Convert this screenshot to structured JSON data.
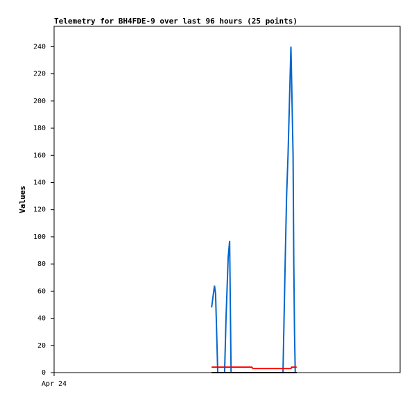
{
  "chart_data": {
    "type": "line",
    "title": "Telemetry for BH4FDE-9 over last 96 hours (25 points)",
    "y_label": "Values",
    "x": [
      43.7,
      44.5,
      44.8,
      45.2,
      45.4,
      47.3,
      47.7,
      48.3,
      48.7,
      49.1,
      54.8,
      55.2,
      63.5,
      64.1,
      64.5,
      64.9,
      65.3,
      65.7,
      65.9,
      66.3,
      66.5,
      66.7,
      66.9,
      67.1,
      67.3
    ],
    "series": [
      {
        "color": "#0066cc",
        "values": [
          48,
          64,
          58,
          20,
          0,
          0,
          40,
          85,
          97,
          0,
          0,
          0,
          0,
          80,
          130,
          160,
          200,
          240,
          215,
          160,
          80,
          30,
          0,
          0,
          0
        ]
      },
      {
        "color": "#ff0000",
        "values": [
          4,
          4,
          4,
          4,
          4,
          4,
          4,
          4,
          4,
          4,
          4,
          3,
          3,
          3,
          3,
          3,
          3,
          3,
          4,
          4,
          4,
          4,
          4,
          4,
          4
        ]
      },
      {
        "color": "#000000",
        "values": [
          0,
          0,
          0,
          0,
          0,
          0,
          0,
          0,
          0,
          0,
          0,
          0,
          0,
          0,
          0,
          0,
          0,
          0,
          0,
          0,
          0,
          0,
          0,
          0,
          0
        ]
      }
    ],
    "xlim": [
      0,
      96
    ],
    "xticks": [
      {
        "value": 0,
        "label": "Apr 24"
      }
    ],
    "ylim": [
      0,
      255
    ],
    "yticks": [
      0,
      20,
      40,
      60,
      80,
      100,
      120,
      140,
      160,
      180,
      200,
      220,
      240
    ],
    "grid": false
  }
}
